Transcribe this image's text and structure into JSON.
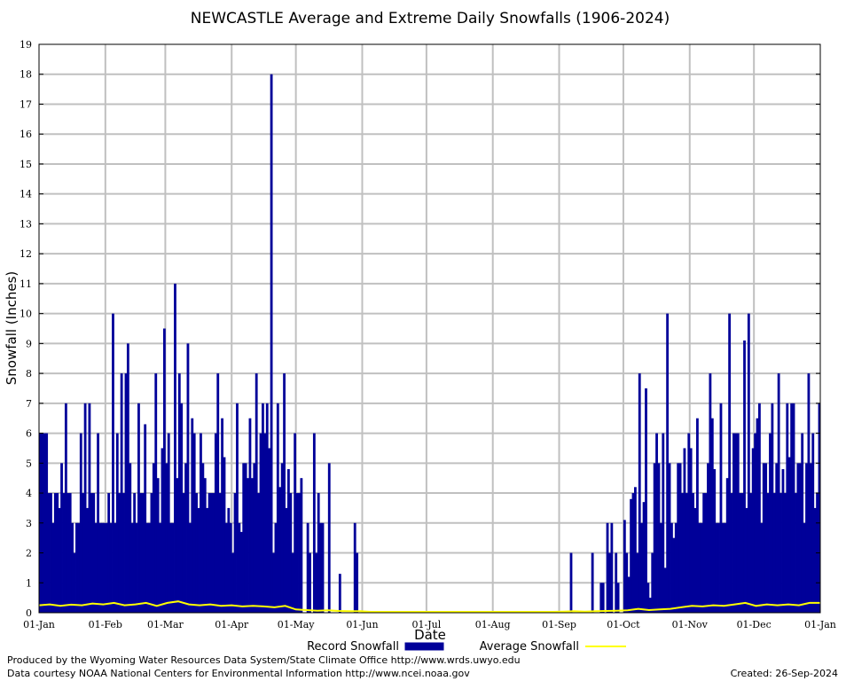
{
  "chart_data": {
    "type": "bar",
    "title": "NEWCASTLE Average and Extreme Daily Snowfalls (1906-2024)",
    "xlabel": "Date",
    "ylabel": "Snowfall (Inches)",
    "ylim": [
      0,
      19
    ],
    "yticks": [
      0,
      1,
      2,
      3,
      4,
      5,
      6,
      7,
      8,
      9,
      10,
      11,
      12,
      13,
      14,
      15,
      16,
      17,
      18,
      19
    ],
    "xticks": [
      "01-Jan",
      "01-Feb",
      "01-Mar",
      "01-Apr",
      "01-May",
      "01-Jun",
      "01-Jul",
      "01-Aug",
      "01-Sep",
      "01-Oct",
      "01-Nov",
      "01-Dec",
      "01-Jan"
    ],
    "month_lengths": [
      31,
      28,
      31,
      30,
      31,
      30,
      31,
      31,
      30,
      31,
      30,
      31
    ],
    "grid": true,
    "legend_position": "bottom-center",
    "series": [
      {
        "name": "Record Snowfall",
        "type": "bar",
        "color": "#000099",
        "values": [
          6,
          6,
          6,
          6,
          4,
          4,
          3,
          4,
          4,
          3.5,
          5,
          4,
          7,
          4,
          4,
          3,
          2,
          3,
          3,
          6,
          4,
          7,
          3.5,
          7,
          4,
          4,
          3,
          6,
          3,
          3,
          3,
          3,
          4,
          3,
          10,
          3,
          6,
          4,
          8,
          4,
          8,
          9,
          5,
          3,
          4,
          3,
          7,
          4,
          4,
          6.3,
          3,
          3,
          4,
          5,
          8,
          4.5,
          3,
          5.5,
          9.5,
          5,
          6,
          3,
          3,
          11,
          4.5,
          8,
          7,
          4,
          5,
          9,
          3,
          6.5,
          6,
          4,
          3.5,
          6,
          5,
          4.5,
          3.5,
          4,
          4,
          4,
          6,
          8,
          4,
          6.5,
          5.2,
          3,
          3.5,
          3,
          2,
          4,
          7,
          3,
          2.7,
          5,
          5,
          4.5,
          6.5,
          4.5,
          5,
          8,
          4,
          6,
          7,
          6,
          7,
          5.5,
          18,
          2,
          3,
          7,
          4.2,
          5,
          8,
          3.5,
          4.8,
          4,
          2,
          6,
          4,
          4,
          4.5,
          0,
          0,
          3,
          2,
          0,
          6,
          2,
          4,
          3,
          3,
          0,
          0,
          5,
          0,
          0,
          0,
          0,
          1.3,
          0,
          0,
          0,
          0,
          0,
          0,
          3,
          2,
          0,
          0,
          0,
          0,
          0,
          0,
          0,
          0,
          0,
          0,
          0,
          0,
          0,
          0,
          0,
          0,
          0,
          0,
          0,
          0,
          0,
          0,
          0,
          0,
          0,
          0,
          0,
          0,
          0,
          0,
          0,
          0,
          0,
          0,
          0,
          0,
          0,
          0,
          0,
          0,
          0,
          0,
          0,
          0,
          0,
          0,
          0,
          0,
          0,
          0,
          0,
          0,
          0,
          0,
          0,
          0,
          0,
          0,
          0,
          0,
          0,
          0,
          0,
          0,
          0,
          0,
          0,
          0,
          0,
          0,
          0,
          0,
          0,
          0,
          0,
          0,
          0,
          0,
          0,
          0,
          0,
          0,
          0,
          0,
          0,
          0,
          0,
          0,
          0,
          0,
          0,
          0,
          0,
          0,
          0,
          0,
          0,
          0,
          0,
          2,
          0,
          0,
          0,
          0,
          0,
          0,
          0,
          0,
          0,
          2,
          0,
          0,
          0,
          1,
          1,
          0,
          3,
          2,
          3,
          0,
          2,
          1,
          0,
          0,
          3.1,
          2,
          1.2,
          3.8,
          4,
          4.2,
          2,
          8,
          3,
          3.7,
          7.5,
          1,
          0.5,
          2,
          5,
          6,
          5,
          3,
          6,
          1.5,
          10,
          5,
          3,
          2.5,
          3,
          5,
          5,
          4,
          5.5,
          4,
          6,
          5.5,
          4,
          3.5,
          6.5,
          3,
          3,
          4,
          4,
          5,
          8,
          6.5,
          4.8,
          3,
          3,
          7,
          3,
          3,
          4.5,
          10,
          4,
          6,
          6,
          6,
          4,
          4,
          9.1,
          3.5,
          10,
          4,
          5.5,
          6,
          6.5,
          7,
          3,
          5,
          5,
          4,
          6,
          7,
          4,
          5,
          8,
          4,
          4.8,
          4,
          7,
          5.2,
          7,
          7,
          4,
          5,
          5,
          6,
          3,
          5,
          8,
          5,
          6,
          3.5,
          4,
          7
        ]
      },
      {
        "name": "Average Snowfall",
        "type": "line",
        "color": "#ffff00",
        "day_step": 5,
        "values": [
          0.22,
          0.25,
          0.2,
          0.24,
          0.22,
          0.28,
          0.25,
          0.3,
          0.22,
          0.25,
          0.3,
          0.2,
          0.3,
          0.35,
          0.25,
          0.22,
          0.25,
          0.2,
          0.22,
          0.18,
          0.2,
          0.18,
          0.15,
          0.2,
          0.08,
          0.06,
          0.04,
          0.05,
          0.03,
          0.02,
          0.02,
          0,
          0,
          0,
          0,
          0,
          0,
          0,
          0,
          0,
          0,
          0,
          0,
          0,
          0,
          0,
          0,
          0,
          0,
          0.01,
          0.02,
          0.01,
          0.02,
          0.03,
          0.04,
          0.05,
          0.1,
          0.06,
          0.08,
          0.1,
          0.15,
          0.2,
          0.18,
          0.22,
          0.2,
          0.25,
          0.3,
          0.2,
          0.25,
          0.22,
          0.25,
          0.22,
          0.3
        ]
      }
    ]
  },
  "footer": {
    "produced_by": "Produced by the Wyoming Water Resources Data System/State Climate Office http://www.wrds.uwyo.edu",
    "courtesy": "Data courtesy NOAA National Centers for Environmental Information http://www.ncei.noaa.gov",
    "created": "Created:  26-Sep-2024"
  }
}
